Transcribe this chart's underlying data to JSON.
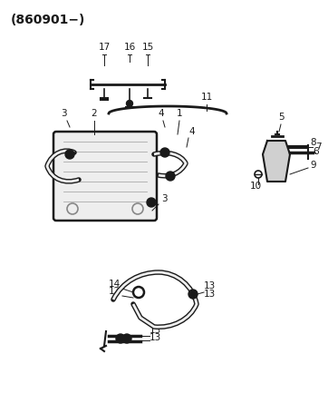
{
  "title": "(860901−)",
  "bg_color": "#ffffff",
  "line_color": "#1a1a1a",
  "label_color": "#1a1a1a",
  "title_fontsize": 11,
  "label_fontsize": 7.5
}
